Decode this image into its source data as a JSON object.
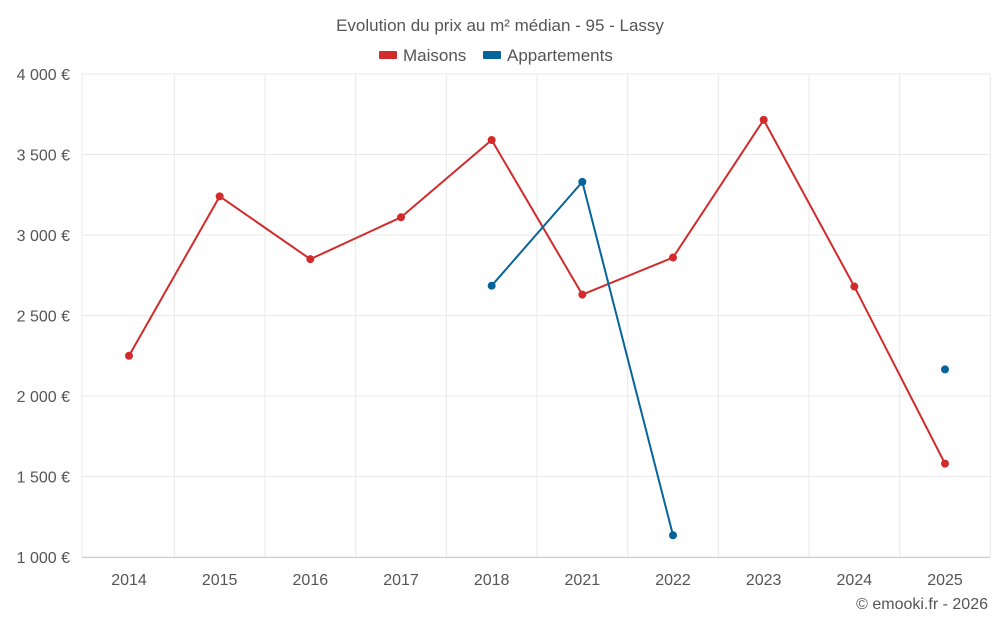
{
  "chart_data": {
    "type": "line",
    "title": "Evolution du prix au m² médian - 95 - Lassy",
    "xlabel": "",
    "ylabel": "",
    "categories": [
      "2014",
      "2015",
      "2016",
      "2017",
      "2018",
      "2021",
      "2022",
      "2023",
      "2024",
      "2025"
    ],
    "ylim": [
      1000,
      4000
    ],
    "yticks": [
      1000,
      1500,
      2000,
      2500,
      3000,
      3500,
      4000
    ],
    "ytick_labels": [
      "1 000 €",
      "1 500 €",
      "2 000 €",
      "2 500 €",
      "3 000 €",
      "3 500 €",
      "4 000 €"
    ],
    "grid": true,
    "legend_position": "top-center",
    "series": [
      {
        "name": "Maisons",
        "color": "#d22b2b",
        "values": [
          2250,
          3240,
          2850,
          3110,
          3590,
          2630,
          2860,
          3715,
          2680,
          1580
        ]
      },
      {
        "name": "Appartements",
        "color": "#07649b",
        "values": [
          null,
          null,
          null,
          null,
          2685,
          3330,
          1135,
          null,
          null,
          2165
        ]
      }
    ]
  },
  "credit": "© emooki.fr - 2026",
  "colors": {
    "grid": "#e8e8e8",
    "axis": "#cccccc",
    "text": "#555555"
  }
}
